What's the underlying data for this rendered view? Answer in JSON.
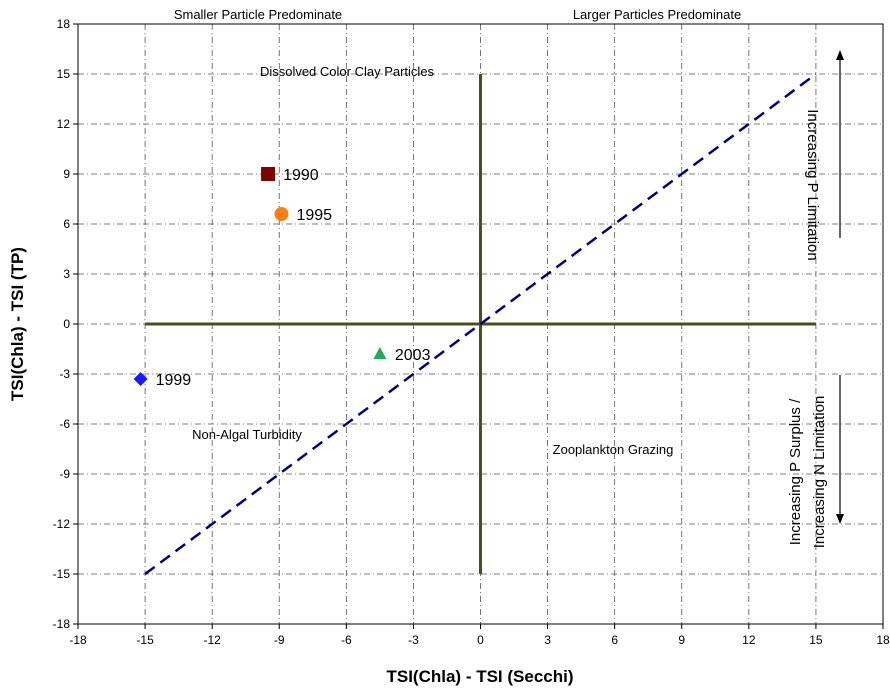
{
  "chart_data": {
    "type": "scatter",
    "xlabel": "TSI(Chla) - TSI (Secchi)",
    "ylabel": "TSI(Chla) - TSI (TP)",
    "xlim": [
      -18,
      18
    ],
    "ylim": [
      -18,
      18
    ],
    "xticks": [
      -18,
      -15,
      -12,
      -9,
      -6,
      -3,
      0,
      3,
      6,
      9,
      12,
      15,
      18
    ],
    "yticks": [
      -18,
      -15,
      -12,
      -9,
      -6,
      -3,
      0,
      3,
      6,
      9,
      12,
      15,
      18
    ],
    "grid": true,
    "points": [
      {
        "label": "1990",
        "x": -9.5,
        "y": 9.0,
        "marker": "square",
        "color": "#800000"
      },
      {
        "label": "1995",
        "x": -8.9,
        "y": 6.6,
        "marker": "circle",
        "color": "#ff7f0e"
      },
      {
        "label": "1999",
        "x": -15.2,
        "y": -3.3,
        "marker": "diamond",
        "color": "#1a1aff"
      },
      {
        "label": "2003",
        "x": -4.5,
        "y": -1.8,
        "marker": "triangle",
        "color": "#22aa55"
      }
    ],
    "reference_lines": {
      "diagonal": {
        "from": [
          -15,
          -15
        ],
        "to": [
          15,
          15
        ],
        "color": "#000080",
        "style": "dashed"
      },
      "horizontal": {
        "from": [
          -15,
          0
        ],
        "to": [
          15,
          0
        ],
        "color": "#4d4d1a"
      },
      "vertical": {
        "from": [
          0,
          -15
        ],
        "to": [
          0,
          15
        ],
        "color": "#4d4d1a"
      }
    },
    "annotations": {
      "top_left": "Smaller Particle Predominate",
      "top_right": "Larger Particles Predominate",
      "upper": "Dissolved Color Clay Particles",
      "left": "Non-Algal Turbidity",
      "lower_right": "Zooplankton Grazing",
      "right_up": "Increasing P Limitation",
      "right_down_1": "Increasing P Surplus /",
      "right_down_2": "Increasing N Limitation"
    }
  }
}
